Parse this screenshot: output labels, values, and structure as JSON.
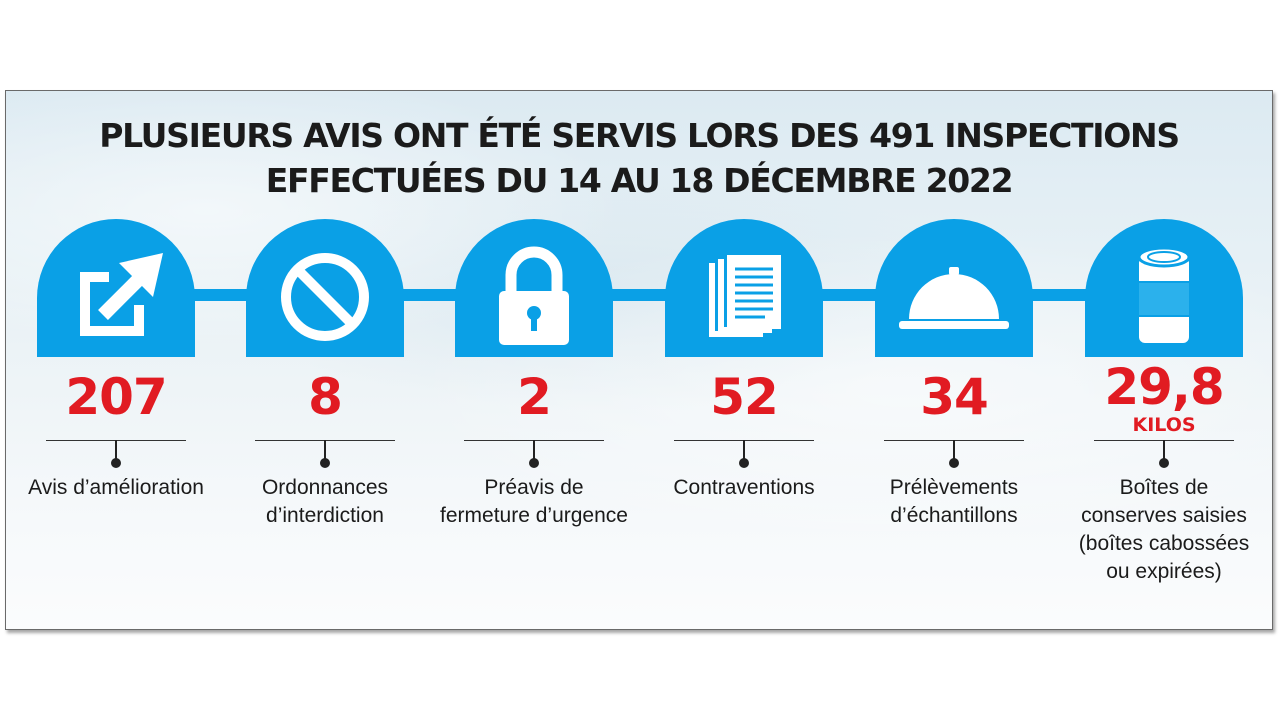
{
  "title": {
    "line1": "PLUSIEURS AVIS ONT ÉTÉ SERVIS LORS DES 491 INSPECTIONS",
    "line2": "EFFECTUÉES DU 14 AU 18 DÉCEMBRE 2022"
  },
  "colors": {
    "accent": "#0aa0e6",
    "value": "#e11b22",
    "text": "#1b1b1b"
  },
  "items": [
    {
      "icon": "external-arrow-icon",
      "value": "207",
      "label": "Avis d’amélioration"
    },
    {
      "icon": "prohibited-icon",
      "value": "8",
      "label": "Ordonnances d’interdiction"
    },
    {
      "icon": "padlock-icon",
      "value": "2",
      "label": "Préavis de fermeture d’urgence"
    },
    {
      "icon": "documents-icon",
      "value": "52",
      "label": "Contraventions"
    },
    {
      "icon": "cloche-icon",
      "value": "34",
      "label": "Prélèvements d’échantillons"
    },
    {
      "icon": "can-icon",
      "value": "29,8",
      "unit": "KILOS",
      "label": "Boîtes de conserves saisies (boîtes cabossées ou expirées)"
    }
  ]
}
